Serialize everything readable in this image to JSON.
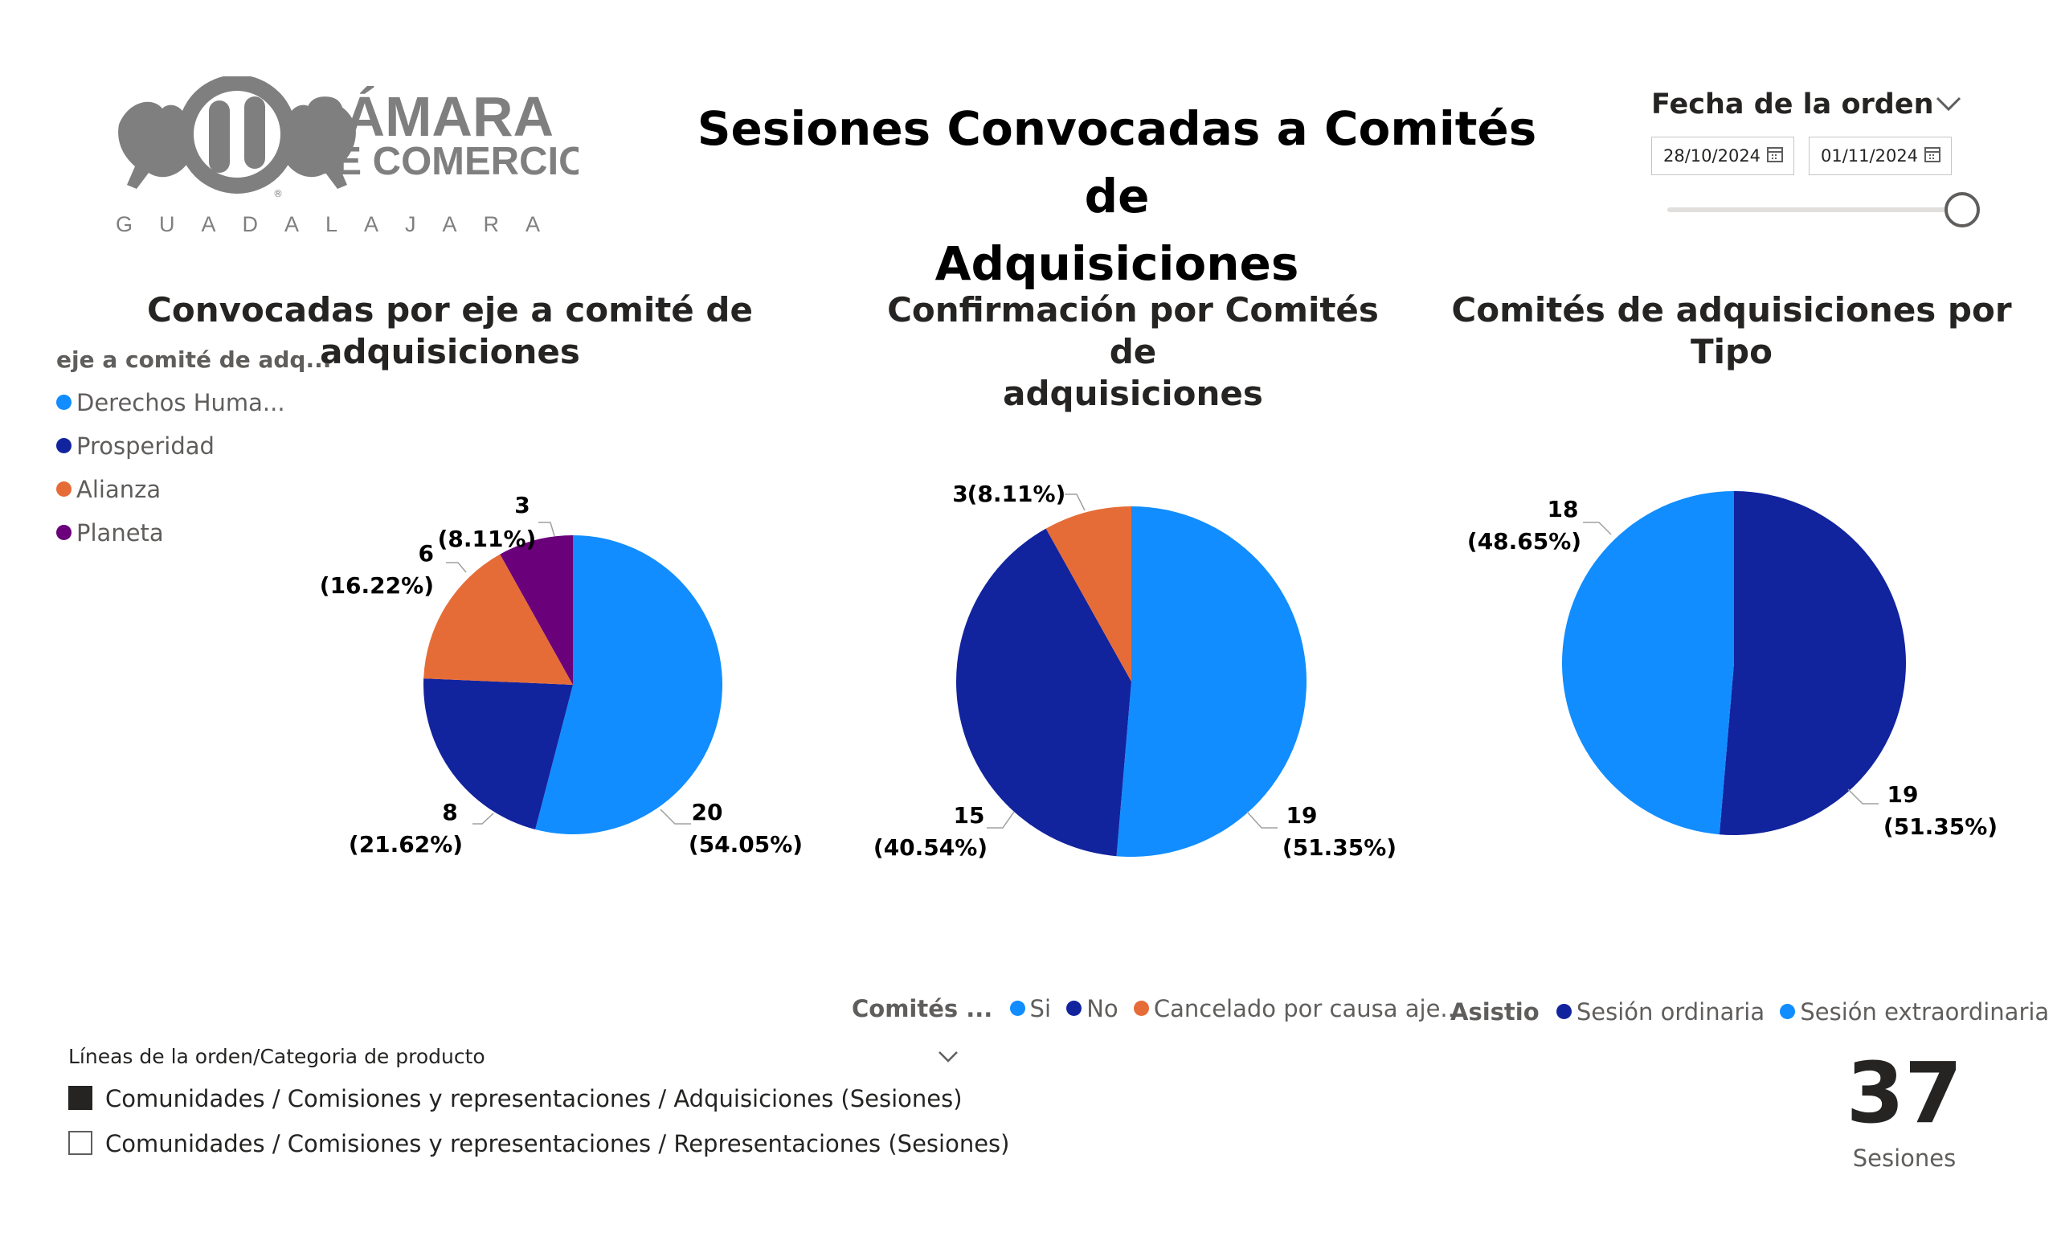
{
  "logo": {
    "line1": "CÁMARA",
    "line2": "DE COMERCIO",
    "city": "GUADALAJARA",
    "mark": "®"
  },
  "header": {
    "title_line1": "Sesiones Convocadas a Comités de",
    "title_line2": "Adquisiciones"
  },
  "date_slicer": {
    "title": "Fecha de la orden",
    "start": "28/10/2024",
    "end": "01/11/2024",
    "icons": [
      "chevron-down-icon",
      "calendar-icon"
    ]
  },
  "colors": {
    "light_blue": "#118DFF",
    "dark_blue": "#12239E",
    "orange": "#E66C37",
    "purple": "#6B007B"
  },
  "chart_data": [
    {
      "type": "pie",
      "title": "Convocadas por eje a comité de adquisiciones",
      "legend_title": "eje a comité de adq...",
      "legend_position": "left",
      "categories": [
        "Derechos Huma...",
        "Prosperidad",
        "Alianza",
        "Planeta"
      ],
      "values": [
        20,
        8,
        6,
        3
      ],
      "percent_labels": [
        "(54.05%)",
        "(21.62%)",
        "(16.22%)",
        "(8.11%)"
      ],
      "colors": [
        "#118DFF",
        "#12239E",
        "#E66C37",
        "#6B007B"
      ]
    },
    {
      "type": "pie",
      "title": "Confirmación por Comités de adquisiciones",
      "title_line1": "Confirmación por Comités de",
      "title_line2": "adquisiciones",
      "legend_title": "Comités ...",
      "legend_position": "bottom",
      "categories": [
        "Si",
        "No",
        "Cancelado por causa aje..."
      ],
      "values": [
        19,
        15,
        3
      ],
      "percent_labels": [
        "(51.35%)",
        "(40.54%)",
        "(8.11%)"
      ],
      "colors": [
        "#118DFF",
        "#12239E",
        "#E66C37"
      ]
    },
    {
      "type": "pie",
      "title": "Comités de adquisiciones por Tipo",
      "legend_title": "Asistio",
      "legend_position": "bottom",
      "categories": [
        "Sesión ordinaria",
        "Sesión extraordinaria"
      ],
      "values": [
        19,
        18
      ],
      "percent_labels": [
        "(51.35%)",
        "(48.65%)"
      ],
      "colors": [
        "#12239E",
        "#118DFF"
      ]
    }
  ],
  "category_slicer": {
    "title": "Líneas de la orden/Categoria de producto",
    "items": [
      {
        "label": "Comunidades / Comisiones y representaciones / Adquisiciones (Sesiones)",
        "checked": true
      },
      {
        "label": "Comunidades / Comisiones y representaciones / Representaciones (Sesiones)",
        "checked": false
      }
    ]
  },
  "kpi": {
    "value": "37",
    "label": "Sesiones"
  }
}
